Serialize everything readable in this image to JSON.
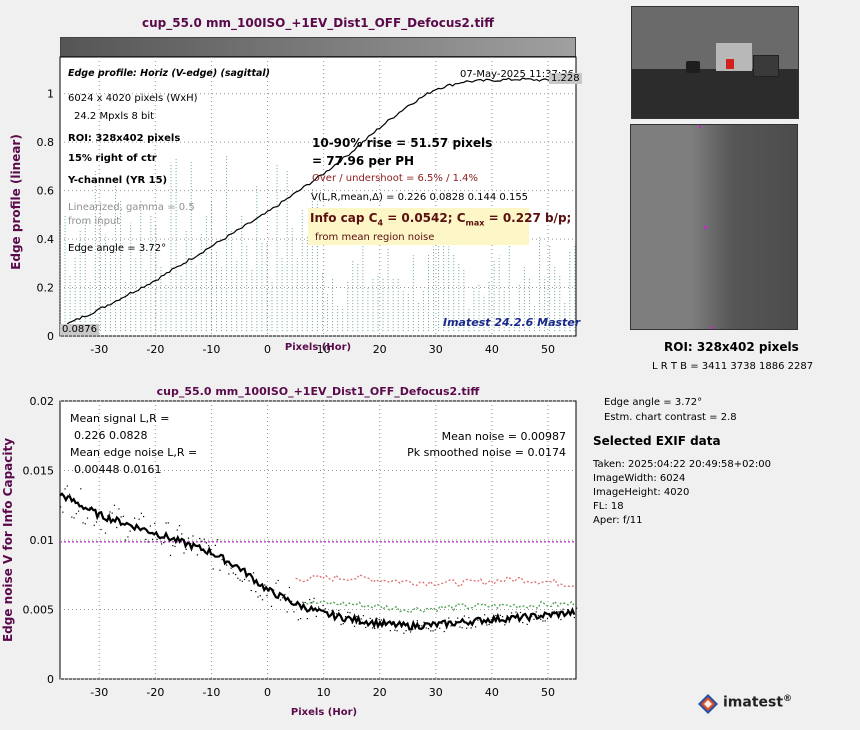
{
  "top_plot": {
    "title": "cup_55.0 mm_100ISO_+1EV_Dist1_OFF_Defocus2.tiff",
    "date": "07-May-2025 11:37:26",
    "profile_label": "Edge profile: Horiz (V-edge) (sagittal)",
    "size_px": "6024 x 4020 pixels (WxH)",
    "mpxls": "24.2 Mpxls   8 bit",
    "roi": "ROI:  328x402 pixels",
    "pos": "15% right of ctr",
    "channel": "Y-channel  (YR 15)",
    "linearized": "Linearized, gamma = 0.5",
    "from_input": "from input",
    "edge_angle": "Edge angle = 3.72°",
    "rise": "10-90% rise = 51.57 pixels",
    "per_ph": "= 77.96 per PH",
    "overshoot": "Over / undershoot =  6.5% /  1.4%",
    "vlr": "V(L,R,mean,Δ) = 0.226  0.0828  0.144  0.155",
    "info_cap": "Info cap C",
    "info_cap_sub": "4",
    "info_cap_val": " = 0.0542;  C",
    "cmax_sub": "max",
    "cmax_val": " = 0.227 b/p;",
    "from_noise": "from mean region noise",
    "brand": "Imatest 24.2.6 Master",
    "min_label": "0.0876",
    "max_label": "1.228",
    "ylabel": "Edge profile (linear)",
    "xlabel": "Pixels (Hor)"
  },
  "bottom_plot": {
    "title": "cup_55.0 mm_100ISO_+1EV_Dist1_OFF_Defocus2.tiff",
    "mean_signal": "Mean signal L,R =",
    "mean_signal_val": "0.226  0.0828",
    "mean_edge_noise": "Mean edge noise L,R =",
    "mean_edge_noise_val": "0.00448  0.0161",
    "mean_noise": "Mean noise = 0.00987",
    "pk_noise": "Pk smoothed noise = 0.0174",
    "ylabel": "Edge noise V for Info Capacity",
    "xlabel": "Pixels (Hor)"
  },
  "right_panel": {
    "roi": "ROI:  328x402 pixels",
    "lrtb": "L R  T B = 3411 3738  1886 2287",
    "edge_angle": "Edge angle = 3.72°",
    "contrast": "Estm. chart contrast = 2.8",
    "exif_title": "Selected EXIF data",
    "exif": [
      "Taken: 2025:04:22 20:49:58+02:00",
      "ImageWidth:  6024",
      "ImageHeight:  4020",
      "FL:   18",
      "Aper:  f/11"
    ],
    "logo": "imatest",
    "logo_mark": "®"
  },
  "chart_data": [
    {
      "type": "line",
      "title": "cup_55.0 mm_100ISO_+1EV_Dist1_OFF_Defocus2.tiff",
      "xlabel": "Pixels (Hor)",
      "ylabel": "Edge profile (linear)",
      "xlim": [
        -37,
        55
      ],
      "ylim": [
        0,
        1.0
      ],
      "xticks": [
        -30,
        -20,
        -10,
        0,
        10,
        20,
        30,
        40,
        50
      ],
      "yticks": [
        0,
        0.2,
        0.4,
        0.6,
        0.8,
        1
      ],
      "grid": true,
      "series": [
        {
          "x": [
            -37,
            -30,
            -20,
            -10,
            0,
            5,
            10,
            15,
            20,
            25,
            30,
            35,
            40,
            45,
            50,
            55
          ],
          "y": [
            0.035,
            0.11,
            0.23,
            0.37,
            0.51,
            0.59,
            0.67,
            0.76,
            0.86,
            0.95,
            1.02,
            1.05,
            1.055,
            1.06,
            1.055,
            1.05
          ]
        }
      ],
      "noise_band": {
        "x_from": -37,
        "x_to": 55,
        "y_max_approx": 0.75,
        "color": "#2e7d6a"
      }
    },
    {
      "type": "line",
      "title": "cup_55.0 mm_100ISO_+1EV_Dist1_OFF_Defocus2.tiff",
      "xlabel": "Pixels (Hor)",
      "ylabel": "Edge noise V for Info Capacity",
      "xlim": [
        -37,
        55
      ],
      "ylim": [
        0,
        0.02
      ],
      "xticks": [
        -30,
        -20,
        -10,
        0,
        10,
        20,
        30,
        40,
        50
      ],
      "yticks": [
        0,
        0.005,
        0.01,
        0.015,
        0.02
      ],
      "grid": true,
      "series": [
        {
          "x": [
            -37,
            -30,
            -20,
            -10,
            -5,
            0,
            5,
            10,
            15,
            20,
            25,
            30,
            35,
            40,
            45,
            50,
            55
          ],
          "y": [
            0.0133,
            0.0118,
            0.0105,
            0.0091,
            0.008,
            0.0064,
            0.0054,
            0.0047,
            0.0043,
            0.004,
            0.0038,
            0.0039,
            0.0041,
            0.0043,
            0.0044,
            0.0046,
            0.0048
          ]
        },
        {
          "x": [
            -37,
            55
          ],
          "y": [
            0.00987,
            0.00987
          ],
          "dotted": true,
          "color": "#b040c0"
        },
        {
          "x": [
            5,
            15,
            25,
            35,
            45,
            55
          ],
          "y": [
            0.0072,
            0.0073,
            0.007,
            0.0069,
            0.0072,
            0.0068
          ],
          "dotted": true,
          "color": "#e07070"
        },
        {
          "x": [
            5,
            15,
            25,
            35,
            45,
            55
          ],
          "y": [
            0.0055,
            0.0054,
            0.005,
            0.0052,
            0.0053,
            0.0054
          ],
          "dotted": true,
          "color": "#50a050"
        }
      ]
    }
  ]
}
